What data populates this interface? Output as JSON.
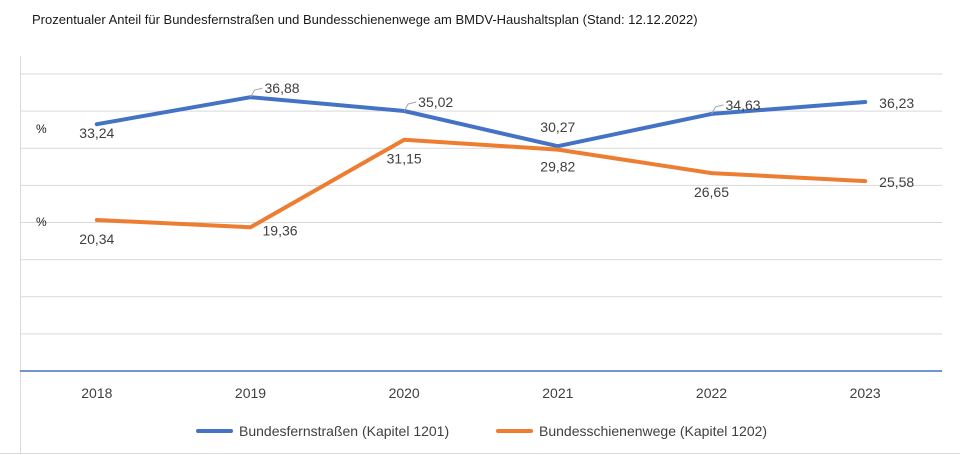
{
  "chart_data": {
    "type": "line",
    "title": "Prozentualer Anteil für Bundesfernstraßen und Bundesschienenwege am BMDV-Haushaltsplan (Stand: 12.12.2022)",
    "x": [
      "2018",
      "2019",
      "2020",
      "2021",
      "2022",
      "2023"
    ],
    "y_unit_labels": [
      "%",
      "%"
    ],
    "series": [
      {
        "name": "Bundesfernstraßen (Kapitel 1201)",
        "color": "#4472c4",
        "values": [
          33.24,
          36.88,
          35.02,
          30.27,
          34.63,
          36.23
        ],
        "labels": [
          "33,24",
          "36,88",
          "35,02",
          "30,27",
          "34,63",
          "36,23"
        ]
      },
      {
        "name": "Bundesschienenwege (Kapitel 1202)",
        "color": "#ed7d31",
        "values": [
          20.34,
          19.36,
          31.15,
          29.82,
          26.65,
          25.58
        ],
        "labels": [
          "20,34",
          "19,36",
          "31,15",
          "29,82",
          "26,65",
          "25,58"
        ]
      }
    ],
    "ylim": [
      0,
      40
    ],
    "grid": true,
    "legend_position": "bottom"
  }
}
